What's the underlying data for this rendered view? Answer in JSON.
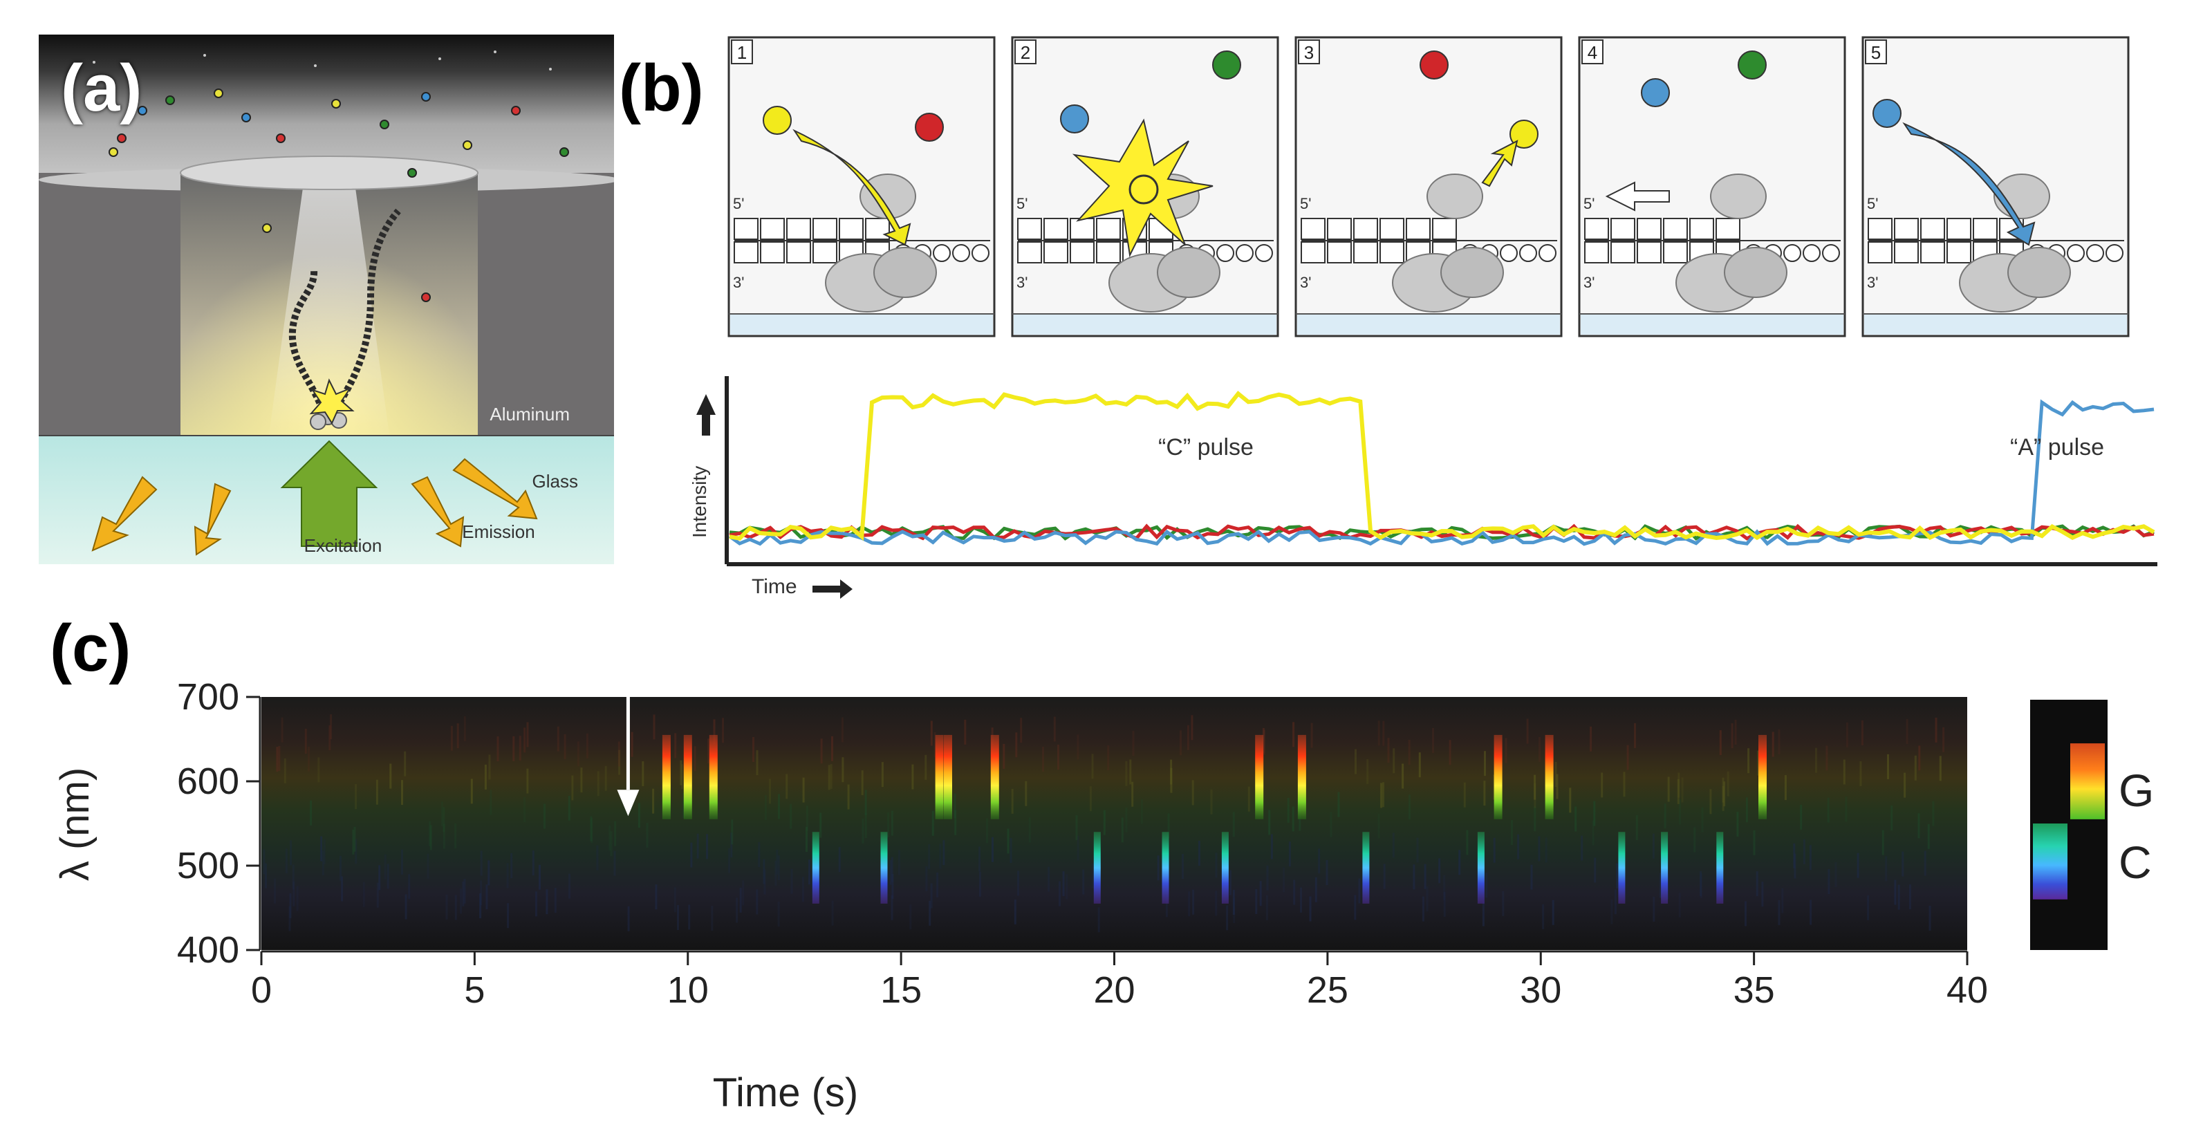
{
  "panels": {
    "a": {
      "letter": "(a)",
      "labels": {
        "aluminum": "Aluminum",
        "glass": "Glass",
        "excitation": "Excitation",
        "emission": "Emission"
      }
    },
    "b": {
      "letter": "(b)",
      "steps": [
        {
          "number": "1"
        },
        {
          "number": "2"
        },
        {
          "number": "3"
        },
        {
          "number": "4"
        },
        {
          "number": "5"
        }
      ],
      "strand_labels": {
        "five_prime": "5'",
        "three_prime": "3'"
      },
      "trace": {
        "ylabel": "Intensity",
        "xlabel": "Time",
        "annotations": {
          "c_pulse": "“C” pulse",
          "a_pulse": "“A” pulse"
        }
      },
      "colors": {
        "yellow": "#f2ea1c",
        "blue": "#4f97cf",
        "red": "#d0262a",
        "green": "#2e8b2e"
      }
    },
    "c": {
      "letter": "(c)",
      "chart_data": {
        "type": "heatmap",
        "xlabel": "Time (s)",
        "ylabel": "λ (nm)",
        "xlim": [
          0,
          40
        ],
        "ylim": [
          400,
          700
        ],
        "x_ticks": [
          "0",
          "5",
          "10",
          "15",
          "20",
          "25",
          "30",
          "35",
          "40"
        ],
        "y_ticks": [
          "700",
          "600",
          "500",
          "400"
        ],
        "arrow_time": 8.6,
        "g_pulses": [
          9.5,
          10.0,
          10.6,
          15.9,
          16.1,
          17.2,
          23.4,
          24.4,
          29.0,
          30.2,
          35.2
        ],
        "c_pulses": [
          13.0,
          14.6,
          19.6,
          21.2,
          22.6,
          25.9,
          28.6,
          31.9,
          32.9,
          34.2
        ],
        "legend": [
          {
            "label": "G",
            "center_nm": 590
          },
          {
            "label": "C",
            "center_nm": 505
          }
        ]
      }
    }
  }
}
